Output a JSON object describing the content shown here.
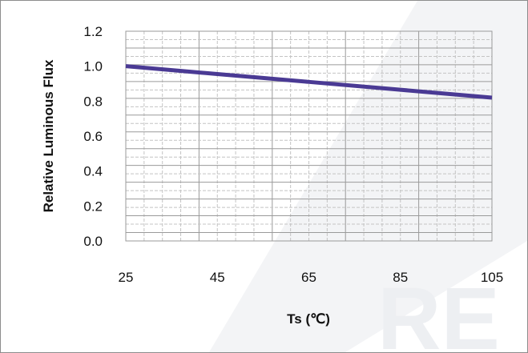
{
  "chart_data": {
    "type": "line",
    "xlabel": "Ts (℃)",
    "ylabel": "Relative Luminous Flux",
    "xlim": [
      25,
      105
    ],
    "ylim": [
      0.0,
      1.2
    ],
    "x_ticks": [
      "25",
      "45",
      "65",
      "85",
      "105"
    ],
    "y_ticks": [
      "0.0",
      "0.2",
      "0.4",
      "0.6",
      "0.8",
      "1.0",
      "1.2"
    ],
    "grid": true,
    "legend": "none",
    "series": [
      {
        "x": [
          25,
          45,
          65,
          85,
          105
        ],
        "values": [
          1.0,
          0.955,
          0.91,
          0.865,
          0.82
        ],
        "color": "#4a3a94"
      }
    ]
  },
  "colors": {
    "line": "#4a3a94",
    "grid_major": "#9a9a9a",
    "grid_minor": "#c4c4c4",
    "watermark": "#eef0f3"
  }
}
